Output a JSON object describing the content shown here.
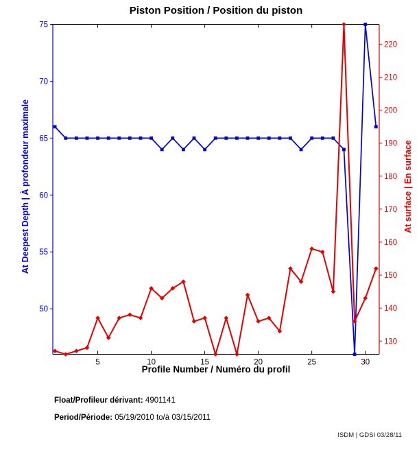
{
  "chart_data": {
    "type": "line",
    "title": "Piston Position / Position du piston",
    "xlabel": "Profile Number / Numéro du profil",
    "ylabel_left": "At Deepest Depth | À profondeur maximale",
    "ylabel_right": "At surface | En surface",
    "color_left": "#0000e0",
    "color_right": "#e60000",
    "x": [
      1,
      2,
      3,
      4,
      5,
      6,
      7,
      8,
      9,
      10,
      11,
      12,
      13,
      14,
      15,
      16,
      17,
      18,
      19,
      20,
      21,
      22,
      23,
      24,
      25,
      26,
      27,
      28,
      29,
      30,
      31
    ],
    "series": [
      {
        "name": "At Deepest Depth | À profondeur maximale",
        "axis": "left",
        "color": "#0000e0",
        "marker": "square",
        "values": [
          66,
          65,
          65,
          65,
          65,
          65,
          65,
          65,
          65,
          65,
          64,
          65,
          64,
          65,
          64,
          65,
          65,
          65,
          65,
          65,
          65,
          65,
          65,
          64,
          65,
          65,
          65,
          64,
          46,
          75,
          66
        ]
      },
      {
        "name": "At surface | En surface",
        "axis": "right",
        "color": "#e60000",
        "marker": "diamond",
        "values": [
          127,
          126,
          127,
          128,
          137,
          131,
          137,
          138,
          137,
          146,
          143,
          146,
          148,
          136,
          137,
          126,
          137,
          126,
          144,
          136,
          137,
          133,
          152,
          148,
          158,
          157,
          145,
          226,
          136,
          143,
          152
        ]
      }
    ],
    "xlim": [
      0.8,
      31.3
    ],
    "ylim_left": [
      46,
      75
    ],
    "ylim_right": [
      126,
      226
    ],
    "xticks": [
      5,
      10,
      15,
      20,
      25,
      30
    ],
    "yticks_left": [
      50,
      55,
      60,
      65,
      70,
      75
    ],
    "yticks_right": [
      130,
      140,
      150,
      160,
      170,
      180,
      190,
      200,
      210,
      220
    ],
    "grid": false,
    "legend": null
  },
  "footer": {
    "float_label": "Float/Profileur dérivant:",
    "float_value": "4901141",
    "period_label": "Period/Période:",
    "period_value": "05/19/2010 to/à 03/15/2011",
    "watermark": "ISDM | GDSI 03/28/11"
  }
}
